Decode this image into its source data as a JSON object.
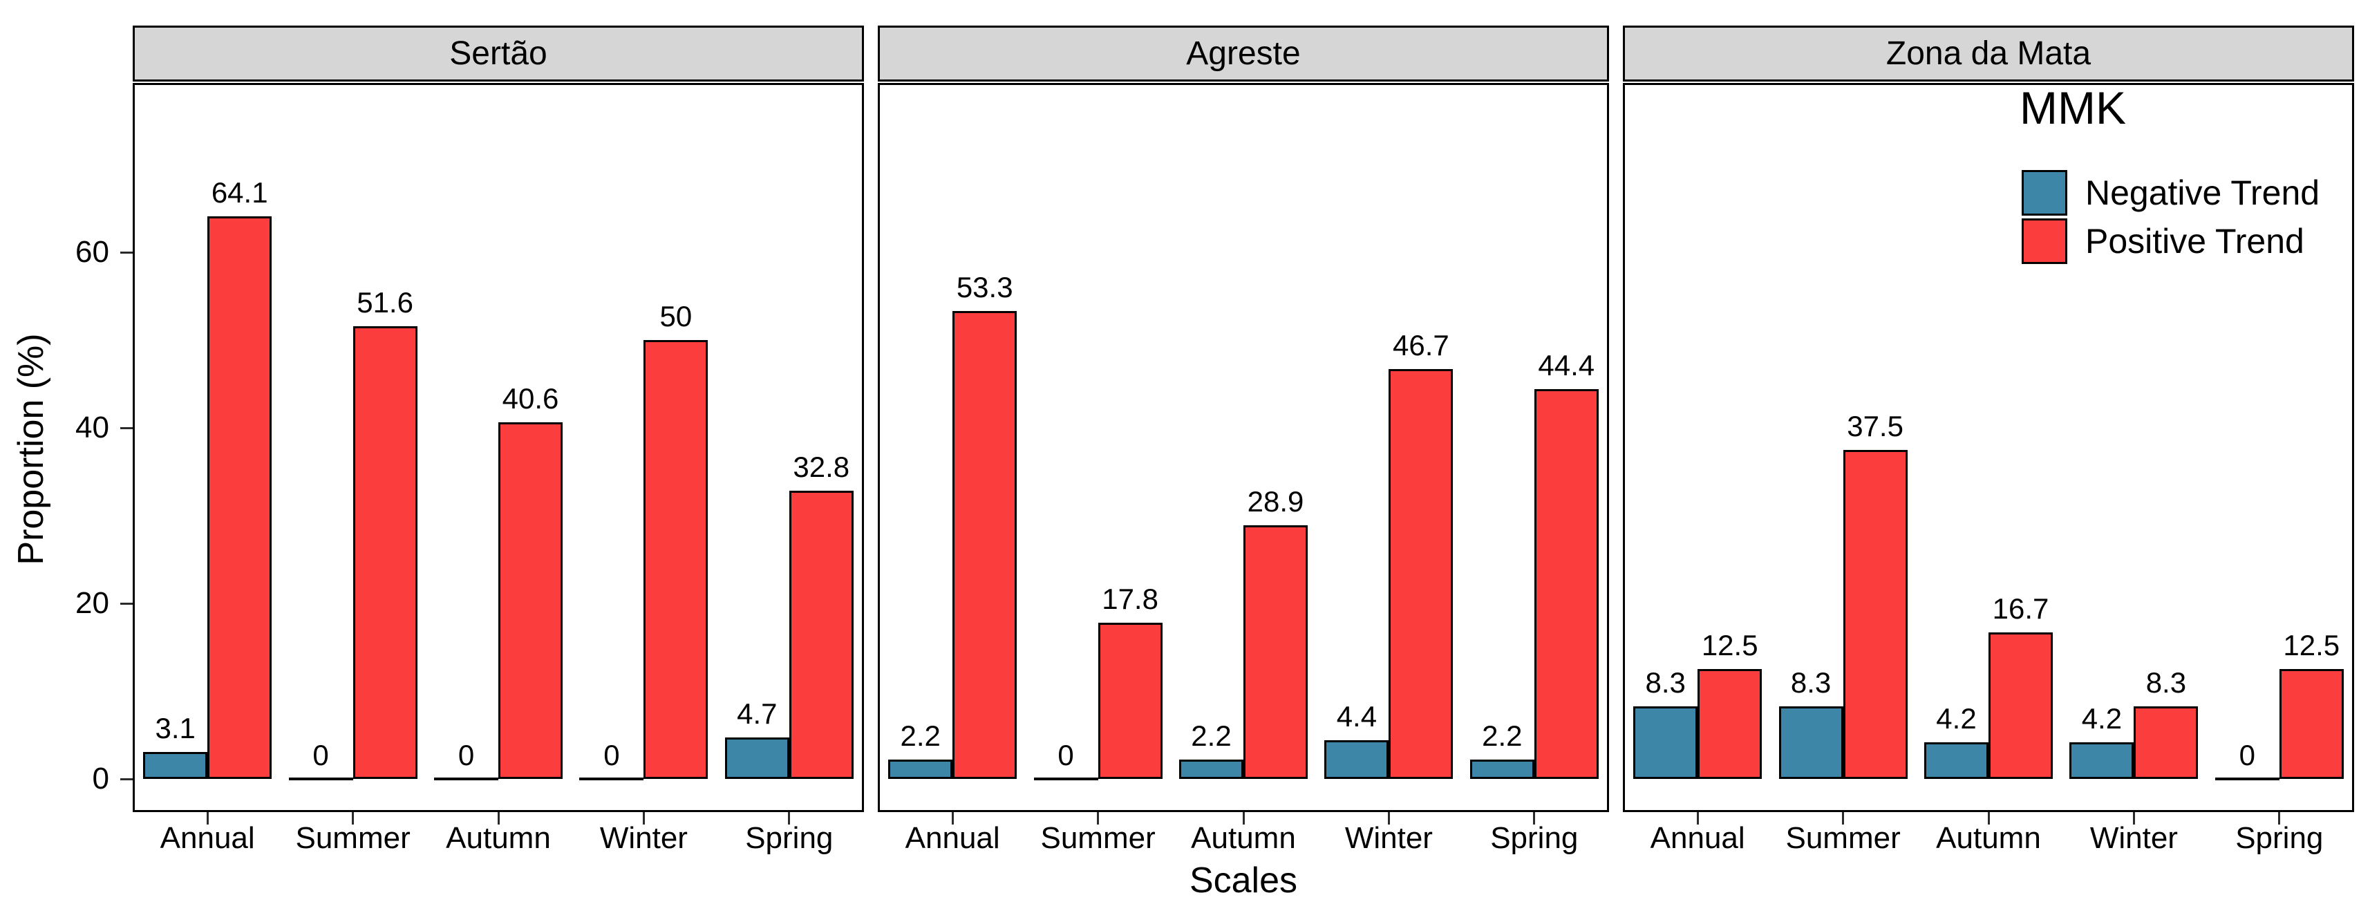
{
  "figure": {
    "y_axis_title": "Proportion (%)",
    "x_axis_title": "Scales",
    "y_tick_labels": [
      "0",
      "20",
      "40",
      "60"
    ],
    "legend": {
      "title": "MMK",
      "items": [
        {
          "label": "Negative Trend",
          "color": "#3E86A8"
        },
        {
          "label": "Positive Trend",
          "color": "#FC3D3D"
        }
      ]
    },
    "colors": {
      "negative": "#3E86A8",
      "positive": "#FC3D3D",
      "strip_background": "#D6D6D6",
      "outline": "#000000"
    }
  },
  "chart_data": {
    "type": "bar",
    "grouped": true,
    "title": "",
    "xlabel": "Scales",
    "ylabel": "Proportion (%)",
    "ylim": [
      0,
      78
    ],
    "y_ticks": [
      0,
      20,
      40,
      60
    ],
    "grid": false,
    "legend_title": "MMK",
    "legend_position": "inside top-right of third facet",
    "categories": [
      "Annual",
      "Summer",
      "Autumn",
      "Winter",
      "Spring"
    ],
    "facets": [
      {
        "title": "Sertão",
        "series": [
          {
            "name": "Negative Trend",
            "values": [
              3.1,
              0,
              0,
              0,
              4.7
            ]
          },
          {
            "name": "Positive Trend",
            "values": [
              64.1,
              51.6,
              40.6,
              50,
              32.8
            ]
          }
        ]
      },
      {
        "title": "Agreste",
        "series": [
          {
            "name": "Negative Trend",
            "values": [
              2.2,
              0,
              2.2,
              4.4,
              2.2
            ]
          },
          {
            "name": "Positive Trend",
            "values": [
              53.3,
              17.8,
              28.9,
              46.7,
              44.4
            ]
          }
        ]
      },
      {
        "title": "Zona da Mata",
        "series": [
          {
            "name": "Negative Trend",
            "values": [
              8.3,
              8.3,
              4.2,
              4.2,
              0
            ]
          },
          {
            "name": "Positive Trend",
            "values": [
              12.5,
              37.5,
              16.7,
              8.3,
              12.5
            ]
          }
        ]
      }
    ]
  }
}
